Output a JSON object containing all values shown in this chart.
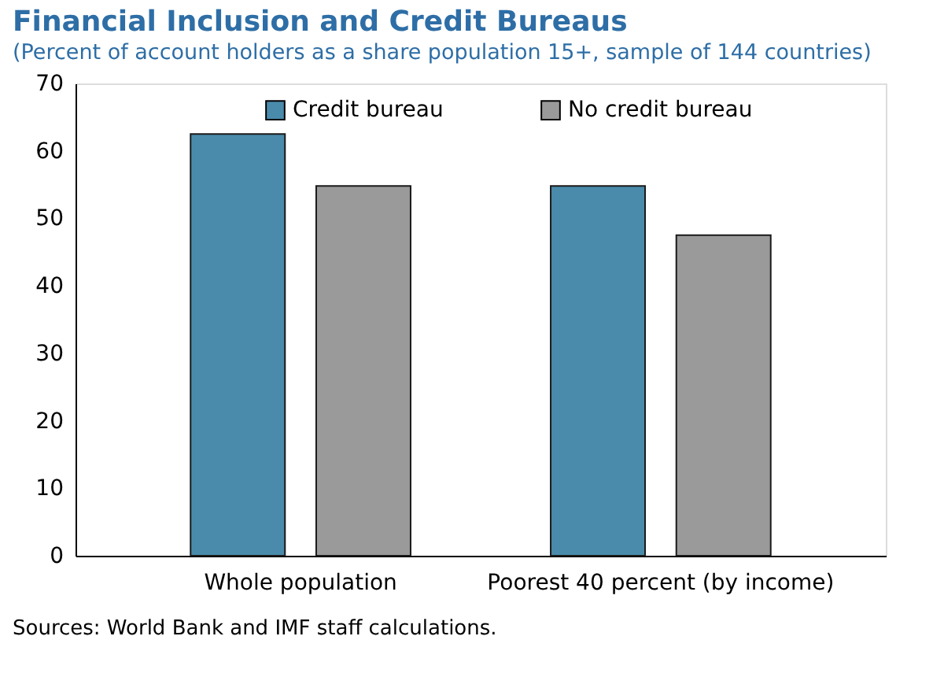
{
  "chart_data": {
    "type": "bar",
    "title": "Financial Inclusion and Credit Bureaus",
    "subtitle": "(Percent of account holders as a share population 15+, sample of 144 countries)",
    "categories": [
      "Whole population",
      "Poorest 40 percent (by income)"
    ],
    "series": [
      {
        "name": "Credit bureau",
        "color": "#4a8bab",
        "values": [
          62.5,
          54.8
        ]
      },
      {
        "name": "No credit bureau",
        "color": "#9a9a9a",
        "values": [
          54.8,
          47.5
        ]
      }
    ],
    "ylim": [
      0,
      70
    ],
    "yticks": [
      0,
      10,
      20,
      30,
      40,
      50,
      60,
      70
    ],
    "grid": false,
    "legend": "top",
    "annotations": [
      "Sources: World Bank and IMF staff calculations."
    ]
  }
}
